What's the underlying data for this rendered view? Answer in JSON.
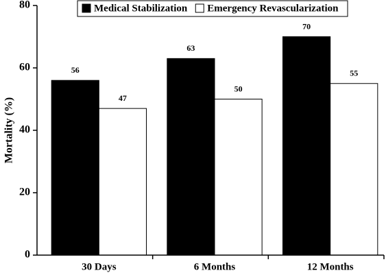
{
  "chart_data": {
    "type": "bar",
    "y_label": "Mortality (%)",
    "categories": [
      "30 Days",
      "6 Months",
      "12 Months"
    ],
    "series": [
      {
        "name": "Medical Stabilization",
        "color": "#000000",
        "values": [
          56,
          63,
          70
        ]
      },
      {
        "name": "Emergency Revascularization",
        "color": "#ffffff",
        "values": [
          47,
          50,
          55
        ]
      }
    ],
    "ylim": [
      0,
      80
    ],
    "yticks": [
      0,
      20,
      40,
      60,
      80
    ],
    "grid": false,
    "legend": "top"
  }
}
